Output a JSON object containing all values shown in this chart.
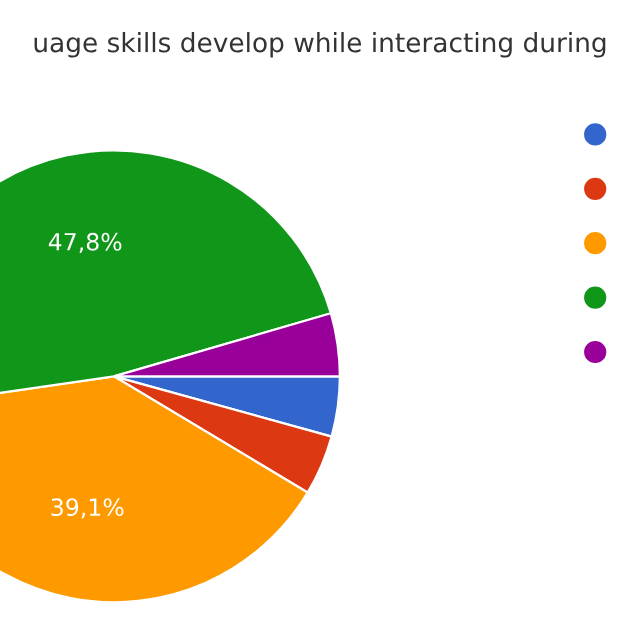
{
  "chart_data": {
    "type": "pie",
    "title": "uage skills develop while interacting during",
    "categories": [
      null,
      null,
      null,
      null,
      null
    ],
    "values": [
      4.3,
      4.3,
      39.1,
      47.8,
      4.5
    ],
    "colors": [
      "#3366cc",
      "#dc3912",
      "#ff9900",
      "#109618",
      "#990099"
    ],
    "value_labels": [
      null,
      null,
      "39,1%",
      "47,8%",
      null
    ]
  }
}
